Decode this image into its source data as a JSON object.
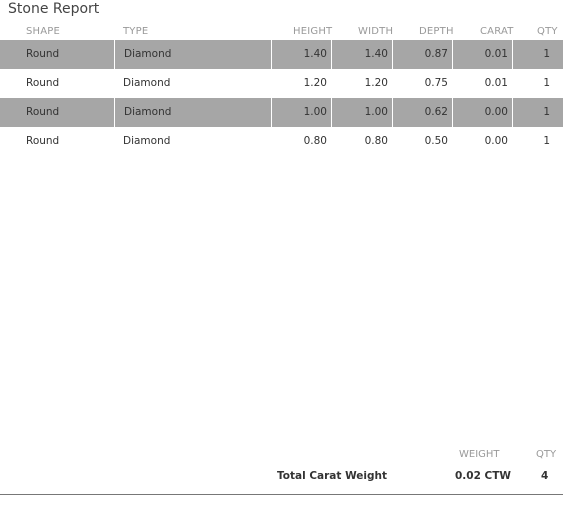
{
  "title": "Stone Report",
  "columns": {
    "shape": "SHAPE",
    "type": "TYPE",
    "height": "HEIGHT",
    "width": "WIDTH",
    "depth": "DEPTH",
    "carat": "CARAT",
    "qty": "QTY"
  },
  "rows": [
    {
      "shape": "Round",
      "type": "Diamond",
      "height": "1.40",
      "width": "1.40",
      "depth": "0.87",
      "carat": "0.01",
      "qty": "1",
      "shaded": true
    },
    {
      "shape": "Round",
      "type": "Diamond",
      "height": "1.20",
      "width": "1.20",
      "depth": "0.75",
      "carat": "0.01",
      "qty": "1",
      "shaded": false
    },
    {
      "shape": "Round",
      "type": "Diamond",
      "height": "1.00",
      "width": "1.00",
      "depth": "0.62",
      "carat": "0.00",
      "qty": "1",
      "shaded": true
    },
    {
      "shape": "Round",
      "type": "Diamond",
      "height": "0.80",
      "width": "0.80",
      "depth": "0.50",
      "carat": "0.00",
      "qty": "1",
      "shaded": false
    }
  ],
  "summary": {
    "weight_header": "WEIGHT",
    "qty_header": "QTY",
    "label": "Total Carat Weight",
    "weight_value": "0.02 CTW",
    "qty_value": "4"
  },
  "colors": {
    "shaded_row": "#a6a6a6",
    "header_text": "#999999",
    "body_text": "#333333"
  }
}
